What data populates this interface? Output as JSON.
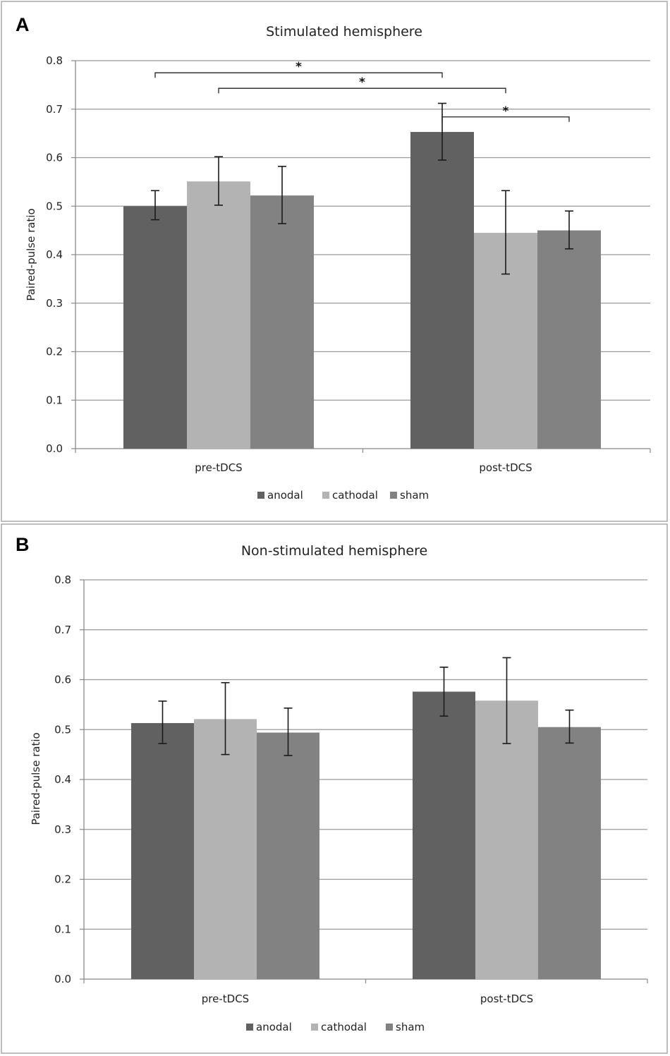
{
  "colors": {
    "anodal": "#616161",
    "cathodal": "#b3b3b3",
    "sham": "#828282",
    "grid": "#9a9a9a",
    "frame": "#a8a8a8",
    "error": "#1a1a1a"
  },
  "chart_data": [
    {
      "panel": "A",
      "type": "bar",
      "title": "Stimulated hemisphere",
      "xlabel": "",
      "ylabel": "Paired-pulse ratio",
      "ylim": [
        0,
        0.8
      ],
      "yticks": [
        "0.0",
        "0.1",
        "0.2",
        "0.3",
        "0.4",
        "0.5",
        "0.6",
        "0.7",
        "0.8"
      ],
      "categories": [
        "pre-tDCS",
        "post-tDCS"
      ],
      "series": [
        {
          "name": "anodal",
          "values": [
            0.5,
            0.653
          ],
          "errors": [
            [
              0.472,
              0.532
            ],
            [
              0.595,
              0.712
            ]
          ]
        },
        {
          "name": "cathodal",
          "values": [
            0.551,
            0.445
          ],
          "errors": [
            [
              0.502,
              0.602
            ],
            [
              0.36,
              0.532
            ]
          ]
        },
        {
          "name": "sham",
          "values": [
            0.522,
            0.45
          ],
          "errors": [
            [
              0.464,
              0.582
            ],
            [
              0.412,
              0.49
            ]
          ]
        }
      ],
      "significance": [
        {
          "from": [
            0,
            0
          ],
          "to": [
            1,
            0
          ],
          "level": 0.775,
          "label": "*"
        },
        {
          "from": [
            0,
            1
          ],
          "to": [
            1,
            1
          ],
          "level": 0.743,
          "label": "*"
        },
        {
          "from": [
            1,
            0
          ],
          "to": [
            1,
            2
          ],
          "level": 0.684,
          "label": "*"
        }
      ],
      "legend": [
        "anodal",
        "cathodal",
        "sham"
      ]
    },
    {
      "panel": "B",
      "type": "bar",
      "title": "Non-stimulated hemisphere",
      "xlabel": "",
      "ylabel": "Paired-pulse ratio",
      "ylim": [
        0,
        0.8
      ],
      "yticks": [
        "0.0",
        "0.1",
        "0.2",
        "0.3",
        "0.4",
        "0.5",
        "0.6",
        "0.7",
        "0.8"
      ],
      "categories": [
        "pre-tDCS",
        "post-tDCS"
      ],
      "series": [
        {
          "name": "anodal",
          "values": [
            0.513,
            0.576
          ],
          "errors": [
            [
              0.472,
              0.557
            ],
            [
              0.527,
              0.625
            ]
          ]
        },
        {
          "name": "cathodal",
          "values": [
            0.521,
            0.558
          ],
          "errors": [
            [
              0.45,
              0.594
            ],
            [
              0.472,
              0.644
            ]
          ]
        },
        {
          "name": "sham",
          "values": [
            0.494,
            0.505
          ],
          "errors": [
            [
              0.448,
              0.543
            ],
            [
              0.473,
              0.539
            ]
          ]
        }
      ],
      "significance": [],
      "legend": [
        "anodal",
        "cathodal",
        "sham"
      ]
    }
  ]
}
